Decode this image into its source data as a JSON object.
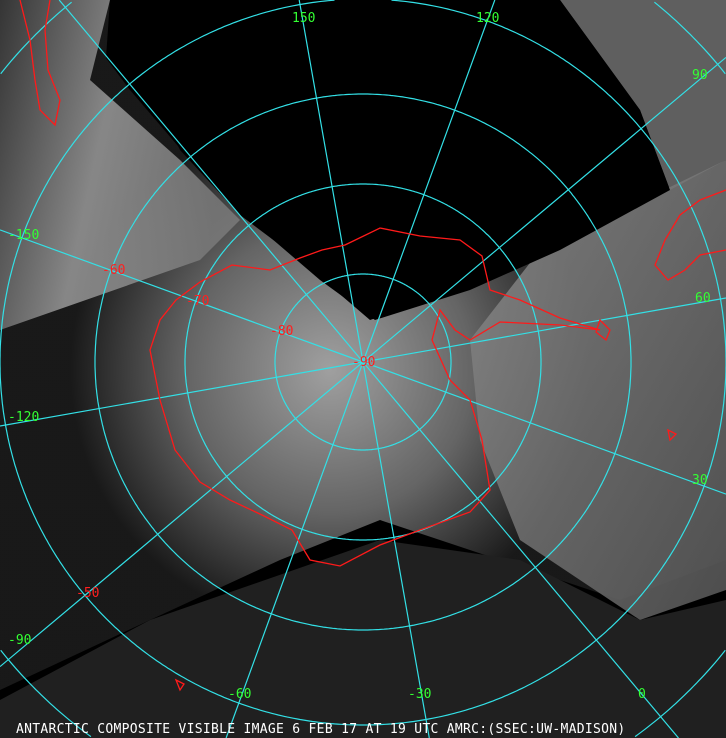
{
  "caption": "ANTARCTIC COMPOSITE VISIBLE IMAGE 6 FEB 17 AT 19 UTC AMRC:(SSEC:UW-MADISON)",
  "longitude_labels": [
    "150",
    "120",
    "90",
    "60",
    "30",
    "0",
    "-30",
    "-60",
    "-90",
    "-120",
    "-150"
  ],
  "latitude_labels": [
    "-50",
    "-60",
    "-70",
    "-80",
    "-90"
  ],
  "colors": {
    "graticule": "#33e0e6",
    "coastline": "#ff1a1a",
    "longitude_label": "#33ff33",
    "latitude_label": "#ff2020",
    "caption": "#ffffff",
    "background": "#000000"
  },
  "projection": "polar stereographic, south pole centered",
  "graticule_longitude_step_deg": 30,
  "graticule_latitude_step_deg": 10
}
